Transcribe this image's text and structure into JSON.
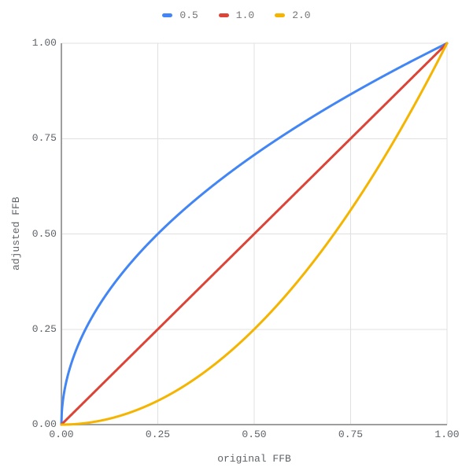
{
  "chart_data": {
    "type": "line",
    "title": "",
    "xlabel": "original FFB",
    "ylabel": "adjusted FFB",
    "xlim": [
      0,
      1
    ],
    "ylim": [
      0,
      1
    ],
    "grid": true,
    "legend_position": "top",
    "tick_values": [
      0,
      0.25,
      0.5,
      0.75,
      1
    ],
    "x_ticks": [
      "0.00",
      "0.25",
      "0.50",
      "0.75",
      "1.00"
    ],
    "y_ticks": [
      "0.00",
      "0.25",
      "0.50",
      "0.75",
      "1.00"
    ],
    "axis_color": "#9e9e9e",
    "gridline_color": "#e0e0e0",
    "series": [
      {
        "name": "0.5",
        "color": "#4285F4",
        "exponent": 0.5,
        "x": [
          0,
          0.05,
          0.1,
          0.15,
          0.2,
          0.25,
          0.3,
          0.35,
          0.4,
          0.45,
          0.5,
          0.55,
          0.6,
          0.65,
          0.7,
          0.75,
          0.8,
          0.85,
          0.9,
          0.95,
          1
        ],
        "y": [
          0,
          0.224,
          0.316,
          0.387,
          0.447,
          0.5,
          0.548,
          0.592,
          0.632,
          0.671,
          0.707,
          0.742,
          0.775,
          0.806,
          0.837,
          0.866,
          0.894,
          0.922,
          0.949,
          0.975,
          1
        ]
      },
      {
        "name": "1.0",
        "color": "#DB4437",
        "exponent": 1.0,
        "x": [
          0,
          0.05,
          0.1,
          0.15,
          0.2,
          0.25,
          0.3,
          0.35,
          0.4,
          0.45,
          0.5,
          0.55,
          0.6,
          0.65,
          0.7,
          0.75,
          0.8,
          0.85,
          0.9,
          0.95,
          1
        ],
        "y": [
          0,
          0.05,
          0.1,
          0.15,
          0.2,
          0.25,
          0.3,
          0.35,
          0.4,
          0.45,
          0.5,
          0.55,
          0.6,
          0.65,
          0.7,
          0.75,
          0.8,
          0.85,
          0.9,
          0.95,
          1
        ]
      },
      {
        "name": "2.0",
        "color": "#F4B400",
        "exponent": 2.0,
        "x": [
          0,
          0.05,
          0.1,
          0.15,
          0.2,
          0.25,
          0.3,
          0.35,
          0.4,
          0.45,
          0.5,
          0.55,
          0.6,
          0.65,
          0.7,
          0.75,
          0.8,
          0.85,
          0.9,
          0.95,
          1
        ],
        "y": [
          0,
          0.003,
          0.01,
          0.023,
          0.04,
          0.063,
          0.09,
          0.123,
          0.16,
          0.203,
          0.25,
          0.303,
          0.36,
          0.423,
          0.49,
          0.563,
          0.64,
          0.723,
          0.81,
          0.903,
          1
        ]
      }
    ]
  }
}
